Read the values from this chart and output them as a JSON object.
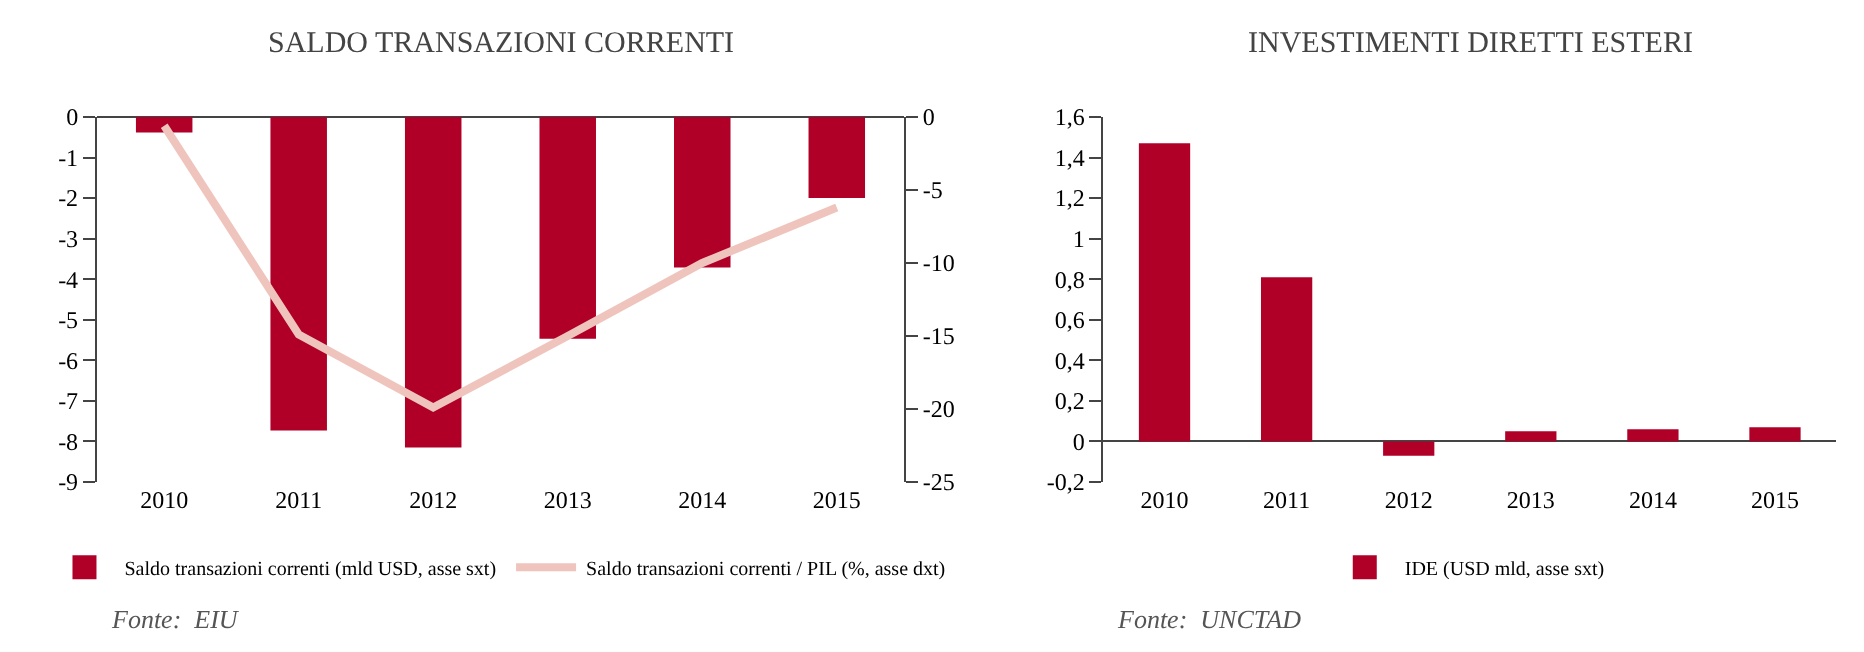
{
  "chart_data": [
    {
      "type": "bar",
      "title": "SALDO TRANSAZIONI CORRENTI",
      "categories": [
        "2010",
        "2011",
        "2012",
        "2013",
        "2014",
        "2015"
      ],
      "series": [
        {
          "name": "Saldo transazioni correnti (mld USD, asse sxt)",
          "color": "#b00028",
          "values": [
            -0.38,
            -7.73,
            -8.15,
            -5.47,
            -3.71,
            -2.0
          ]
        },
        {
          "name": "Saldo transazioni correnti / PIL (%, asse dxt)",
          "type": "line",
          "axis": "y2",
          "color": "#efc4bd",
          "values": [
            -0.6,
            -14.9,
            -19.9,
            -15.0,
            -10.0,
            -6.2
          ]
        }
      ],
      "ylim": [
        -9,
        0
      ],
      "yticks": [
        0,
        -1,
        -2,
        -3,
        -4,
        -5,
        -6,
        -7,
        -8,
        -9
      ],
      "y2lim": [
        -25,
        0
      ],
      "y2ticks": [
        0,
        -5,
        -10,
        -15,
        -20,
        -25
      ],
      "legend": "bottom",
      "annotations": [
        "Fonte:  EIU"
      ]
    },
    {
      "type": "bar",
      "title": "INVESTIMENTI DIRETTI ESTERI",
      "categories": [
        "2010",
        "2011",
        "2012",
        "2013",
        "2014",
        "2015"
      ],
      "series": [
        {
          "name": "IDE (USD mld, asse sxt)",
          "color": "#b00028",
          "values": [
            1.47,
            0.81,
            -0.07,
            0.05,
            0.06,
            0.07
          ]
        }
      ],
      "ylim": [
        -0.2,
        1.6
      ],
      "yticks": [
        {
          "value": -0.2,
          "label": "-0,2"
        },
        0,
        {
          "value": 0.2,
          "label": "0,2"
        },
        {
          "value": 0.4,
          "label": "0,4"
        },
        {
          "value": 0.6,
          "label": "0,6"
        },
        {
          "value": 0.8,
          "label": "0,8"
        },
        1,
        {
          "value": 1.2,
          "label": "1,2"
        },
        {
          "value": 1.4,
          "label": "1,4"
        },
        {
          "value": 1.6,
          "label": "1,6"
        }
      ],
      "legend": "bottom",
      "annotations": [
        "Fonte:  UNCTAD"
      ]
    }
  ]
}
